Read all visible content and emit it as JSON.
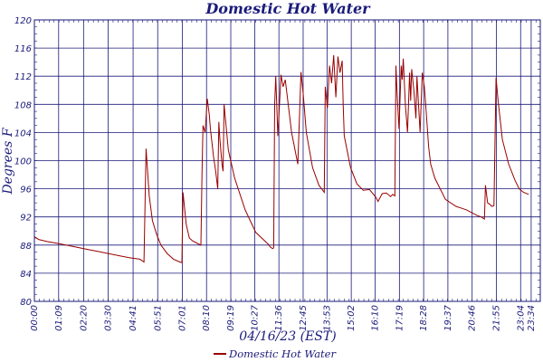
{
  "chart_data": {
    "type": "line",
    "title": "Domestic Hot Water",
    "xlabel": "04/16/23 (EST)",
    "ylabel": "Degrees F",
    "ylim": [
      80,
      120
    ],
    "y_ticks": [
      80,
      84,
      88,
      92,
      96,
      100,
      104,
      108,
      112,
      116,
      120
    ],
    "x_range_hours": [
      0,
      24
    ],
    "x_ticks": [
      {
        "label": "00:00",
        "h": 0.0
      },
      {
        "label": "01:09",
        "h": 1.15
      },
      {
        "label": "02:20",
        "h": 2.333
      },
      {
        "label": "03:30",
        "h": 3.5
      },
      {
        "label": "04:41",
        "h": 4.683
      },
      {
        "label": "05:51",
        "h": 5.85
      },
      {
        "label": "07:01",
        "h": 7.017
      },
      {
        "label": "08:10",
        "h": 8.167
      },
      {
        "label": "09:19",
        "h": 9.317
      },
      {
        "label": "10:27",
        "h": 10.45
      },
      {
        "label": "11:36",
        "h": 11.6
      },
      {
        "label": "12:45",
        "h": 12.75
      },
      {
        "label": "13:53",
        "h": 13.883
      },
      {
        "label": "15:02",
        "h": 15.033
      },
      {
        "label": "16:10",
        "h": 16.167
      },
      {
        "label": "17:19",
        "h": 17.317
      },
      {
        "label": "18:28",
        "h": 18.467
      },
      {
        "label": "19:37",
        "h": 19.617
      },
      {
        "label": "20:46",
        "h": 20.767
      },
      {
        "label": "21:55",
        "h": 21.917
      },
      {
        "label": "23:04",
        "h": 23.067
      },
      {
        "label": "23:34",
        "h": 23.567
      }
    ],
    "legend_position": "bottom-center",
    "colors": {
      "line": "#990000",
      "grid": "#1a1a7a",
      "text": "#1a1a7a"
    },
    "series": [
      {
        "name": "Domestic Hot Water",
        "x": [
          0,
          0.2,
          0.6,
          1.0,
          1.5,
          2.0,
          2.5,
          3.0,
          3.5,
          4.0,
          4.5,
          5.0,
          5.1,
          5.2,
          5.3,
          5.45,
          5.6,
          5.8,
          6.0,
          6.3,
          6.6,
          6.9,
          7.0,
          7.05,
          7.2,
          7.35,
          7.5,
          7.7,
          7.9,
          7.95,
          8.0,
          8.1,
          8.2,
          8.3,
          8.35,
          8.5,
          8.6,
          8.7,
          8.75,
          8.8,
          8.9,
          8.95,
          9.0,
          9.2,
          9.5,
          10.0,
          10.5,
          11.0,
          11.1,
          11.2,
          11.3,
          11.35,
          11.4,
          11.45,
          11.55,
          11.7,
          11.8,
          11.9,
          12.2,
          12.5,
          12.65,
          12.75,
          12.9,
          13.2,
          13.5,
          13.75,
          13.8,
          13.9,
          14.0,
          14.1,
          14.2,
          14.3,
          14.4,
          14.5,
          14.6,
          14.65,
          14.7,
          15.0,
          15.3,
          15.6,
          15.9,
          16.2,
          16.3,
          16.5,
          16.7,
          16.9,
          17.0,
          17.1,
          17.15,
          17.2,
          17.3,
          17.4,
          17.45,
          17.5,
          17.6,
          17.7,
          17.8,
          17.85,
          17.9,
          18.0,
          18.1,
          18.15,
          18.3,
          18.4,
          18.5,
          18.6,
          18.7,
          18.8,
          19.0,
          19.5,
          20.0,
          20.5,
          21.0,
          21.2,
          21.3,
          21.35,
          21.4,
          21.5,
          21.6,
          21.7,
          21.8,
          21.9,
          22.0,
          22.2,
          22.5,
          22.8,
          23.0,
          23.2,
          23.45
        ],
        "y": [
          89.2,
          88.8,
          88.5,
          88.3,
          88.0,
          87.7,
          87.4,
          87.1,
          86.8,
          86.5,
          86.2,
          86.0,
          85.8,
          85.6,
          101.7,
          95.0,
          91.5,
          89.5,
          88.0,
          86.8,
          86.0,
          85.6,
          85.5,
          95.5,
          91.0,
          89.0,
          88.6,
          88.3,
          88.0,
          98.0,
          105.0,
          104.0,
          108.8,
          106.5,
          104.5,
          100.5,
          98.5,
          96.0,
          105.5,
          103.0,
          99.5,
          98.5,
          108.0,
          101.5,
          97.5,
          93.0,
          89.8,
          88.4,
          88.1,
          87.7,
          87.5,
          87.6,
          108.0,
          112.0,
          103.5,
          112.2,
          110.5,
          111.5,
          104.0,
          99.5,
          112.6,
          109.5,
          104.0,
          99.0,
          96.5,
          95.5,
          110.5,
          107.5,
          113.5,
          111.0,
          115.0,
          109.0,
          114.8,
          112.5,
          114.2,
          108.0,
          103.5,
          99.0,
          96.7,
          95.8,
          95.9,
          94.8,
          94.2,
          95.3,
          95.4,
          94.9,
          95.2,
          95.0,
          113.5,
          110.0,
          104.5,
          113.5,
          111.5,
          114.5,
          108.0,
          104.0,
          112.5,
          108.5,
          113.0,
          110.0,
          106.0,
          112.0,
          104.0,
          112.5,
          110.5,
          106.5,
          102.0,
          99.5,
          97.5,
          94.5,
          93.5,
          93.0,
          92.2,
          92.0,
          91.8,
          91.7,
          96.5,
          94.0,
          93.8,
          93.5,
          93.6,
          111.8,
          108.5,
          103.0,
          99.5,
          97.2,
          96.0,
          95.5,
          95.2
        ]
      }
    ]
  }
}
